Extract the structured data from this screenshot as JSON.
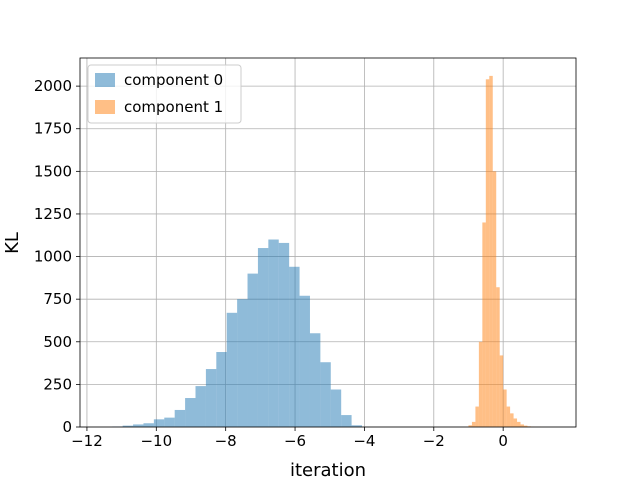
{
  "chart_data": {
    "type": "bar",
    "subtype": "histogram",
    "xlabel": "iteration",
    "ylabel": "KL",
    "xlim": [
      -12.2,
      2.1
    ],
    "ylim": [
      0,
      2165
    ],
    "grid": true,
    "legend_position": "top-left",
    "xticks": [
      {
        "value": -12,
        "label": "−12"
      },
      {
        "value": -10,
        "label": "−10"
      },
      {
        "value": -8,
        "label": "−8"
      },
      {
        "value": -6,
        "label": "−6"
      },
      {
        "value": -4,
        "label": "−4"
      },
      {
        "value": -2,
        "label": "−2"
      },
      {
        "value": 0,
        "label": "0"
      }
    ],
    "yticks": [
      {
        "value": 0,
        "label": "0"
      },
      {
        "value": 250,
        "label": "250"
      },
      {
        "value": 500,
        "label": "500"
      },
      {
        "value": 750,
        "label": "750"
      },
      {
        "value": 1000,
        "label": "1000"
      },
      {
        "value": 1250,
        "label": "1250"
      },
      {
        "value": 1500,
        "label": "1500"
      },
      {
        "value": 1750,
        "label": "1750"
      },
      {
        "value": 2000,
        "label": "2000"
      }
    ],
    "series": [
      {
        "name": "component 0",
        "color": "#1f77b4",
        "alpha": 0.5,
        "bin_start": -11.27,
        "bin_width": 0.3,
        "counts": [
          3,
          8,
          15,
          22,
          45,
          55,
          100,
          170,
          240,
          340,
          440,
          670,
          750,
          900,
          1050,
          1100,
          1080,
          940,
          770,
          550,
          380,
          220,
          70,
          10
        ]
      },
      {
        "name": "component 1",
        "color": "#ff7f0e",
        "alpha": 0.5,
        "bin_start": -1.0,
        "bin_width": 0.1,
        "counts": [
          10,
          30,
          120,
          500,
          1200,
          2040,
          2060,
          1500,
          820,
          420,
          220,
          120,
          80,
          50,
          30,
          15,
          8,
          4,
          2,
          1,
          1
        ]
      }
    ]
  }
}
